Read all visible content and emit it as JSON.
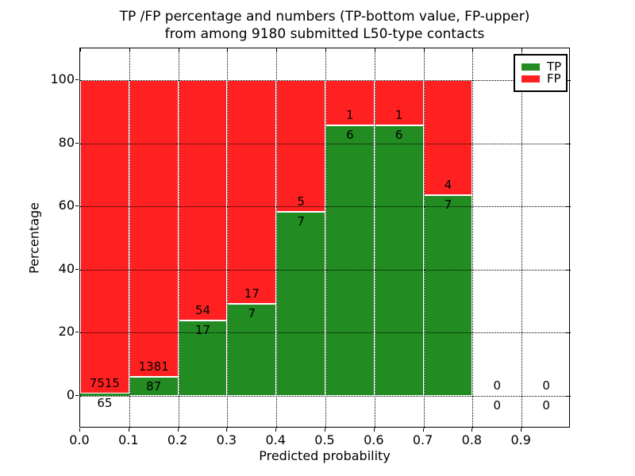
{
  "title": {
    "line1": "TP /FP percentage and numbers (TP-bottom value, FP-upper)",
    "line2": "from among 9180 submitted L50-type contacts"
  },
  "y_axis": {
    "label": "Percentage",
    "ticks": [
      "0",
      "20",
      "40",
      "60",
      "80",
      "100"
    ]
  },
  "x_axis": {
    "label": "Predicted probability",
    "ticks": [
      "0.0",
      "0.1",
      "0.2",
      "0.3",
      "0.4",
      "0.5",
      "0.6",
      "0.7",
      "0.8",
      "0.9"
    ]
  },
  "legend": {
    "items": [
      {
        "label": "TP",
        "color": "#228b22"
      },
      {
        "label": "FP",
        "color": "#ff2121"
      }
    ]
  },
  "chart_data": {
    "type": "bar",
    "stacked": true,
    "title": "TP /FP percentage and numbers (TP-bottom value, FP-upper) from among 9180 submitted L50-type contacts",
    "xlabel": "Predicted probability",
    "ylabel": "Percentage",
    "x_bin_edges": [
      0.0,
      0.1,
      0.2,
      0.3,
      0.4,
      0.5,
      0.6,
      0.7,
      0.8,
      0.9,
      1.0
    ],
    "categories": [
      "0.0-0.1",
      "0.1-0.2",
      "0.2-0.3",
      "0.3-0.4",
      "0.4-0.5",
      "0.5-0.6",
      "0.6-0.7",
      "0.7-0.8",
      "0.8-0.9",
      "0.9-1.0"
    ],
    "series": [
      {
        "name": "TP",
        "counts": [
          65,
          87,
          17,
          7,
          7,
          6,
          6,
          7,
          0,
          0
        ],
        "color": "#228b22"
      },
      {
        "name": "FP",
        "counts": [
          7515,
          1381,
          54,
          17,
          5,
          1,
          1,
          4,
          0,
          0
        ],
        "color": "#ff2121"
      }
    ],
    "tp_percent": [
      0.86,
      5.93,
      23.94,
      29.17,
      58.33,
      85.71,
      85.71,
      63.64,
      0,
      0
    ],
    "total_contacts": 9180,
    "ylim": [
      -10.3,
      110.1
    ],
    "xlim": [
      0.0,
      1.0
    ],
    "grid": true,
    "grid_style": "dotted",
    "bar_edge_color": "#ffffff",
    "legend_position": "upper right",
    "colors": {
      "tp": "#228b22",
      "fp": "#ff2121"
    }
  }
}
